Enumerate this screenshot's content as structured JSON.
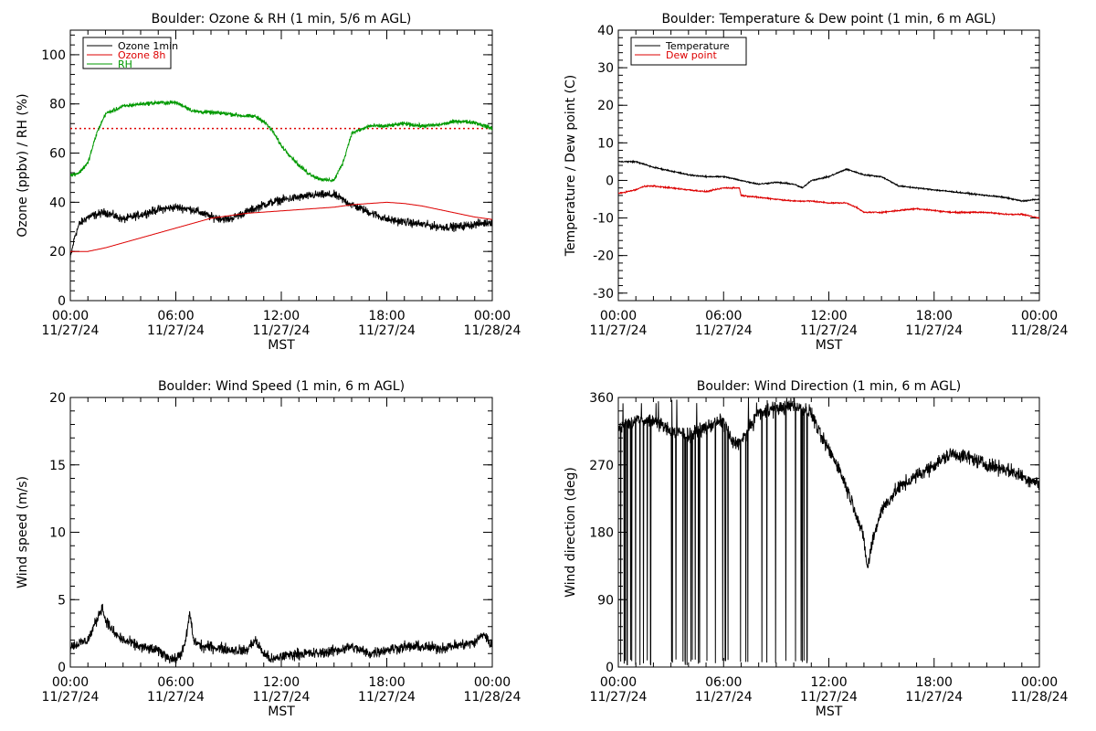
{
  "colors": {
    "black": "#000000",
    "red": "#dd0000",
    "green": "#009900"
  },
  "x_tick_labels": [
    {
      "time": "00:00",
      "date": "11/27/24"
    },
    {
      "time": "06:00",
      "date": "11/27/24"
    },
    {
      "time": "12:00",
      "date": "11/27/24"
    },
    {
      "time": "18:00",
      "date": "11/27/24"
    },
    {
      "time": "00:00",
      "date": "11/28/24"
    }
  ],
  "chart_data": [
    {
      "id": "ozone_rh",
      "type": "line",
      "title": "Boulder: Ozone & RH (1 min, 5/6 m AGL)",
      "xlabel": "MST",
      "ylabel": "Ozone (ppbv) / RH (%)",
      "xlim": [
        "2024-11-27 00:00",
        "2024-11-28 00:00"
      ],
      "ylim": [
        0,
        110
      ],
      "yticks": [
        0,
        20,
        40,
        60,
        80,
        100
      ],
      "legend_position": "top-left",
      "reference_line": {
        "y": 70,
        "color": "#dd0000",
        "style": "dotted"
      },
      "series": [
        {
          "name": "Ozone 1min",
          "color": "#000000",
          "noise": 2.5,
          "x_hours": [
            0,
            0.25,
            0.5,
            1,
            2,
            3,
            4,
            5,
            6,
            7,
            8,
            9,
            10,
            11,
            12,
            13,
            14,
            15,
            16,
            17,
            18,
            19,
            20,
            21,
            22,
            23,
            24
          ],
          "y": [
            17,
            26,
            31,
            34,
            36,
            33,
            35,
            37,
            38,
            37,
            34,
            33,
            36,
            39,
            41,
            42,
            43,
            43,
            39,
            36,
            33,
            32,
            31,
            30,
            30,
            31,
            32
          ]
        },
        {
          "name": "Ozone 8h",
          "color": "#dd0000",
          "noise": 0,
          "x_hours": [
            0,
            1,
            2,
            3,
            4,
            5,
            6,
            7,
            8,
            9,
            10,
            11,
            12,
            13,
            14,
            15,
            16,
            17,
            18,
            19,
            20,
            21,
            22,
            23,
            24
          ],
          "y": [
            20,
            20,
            21.5,
            23.5,
            25.5,
            27.5,
            29.5,
            31.5,
            33.5,
            34.5,
            35.5,
            36,
            36.5,
            37,
            37.5,
            38,
            39,
            39.5,
            40,
            39.5,
            38.5,
            37,
            35.5,
            34,
            33
          ]
        },
        {
          "name": "RH",
          "color": "#009900",
          "noise": 1.2,
          "x_hours": [
            0,
            0.5,
            1,
            1.5,
            2,
            3,
            4,
            5,
            6,
            6.5,
            7,
            8,
            9,
            10,
            10.5,
            11,
            11.5,
            12,
            12.5,
            13,
            13.5,
            14,
            14.5,
            15,
            15.5,
            16,
            17,
            18,
            19,
            20,
            21,
            22,
            23,
            24
          ],
          "y": [
            51,
            52,
            56,
            68,
            76,
            79,
            80,
            80.5,
            80.5,
            79,
            77,
            76.5,
            76,
            75,
            75,
            73,
            69,
            63,
            59,
            55,
            52,
            50,
            49,
            49,
            56,
            68,
            71,
            71,
            72,
            71,
            71.5,
            73,
            72.5,
            70
          ]
        }
      ]
    },
    {
      "id": "temp_dew",
      "type": "line",
      "title": "Boulder: Temperature & Dew point (1 min, 6 m AGL)",
      "xlabel": "MST",
      "ylabel": "Temperature / Dew point (C)",
      "xlim": [
        "2024-11-27 00:00",
        "2024-11-28 00:00"
      ],
      "ylim": [
        -32,
        40
      ],
      "yticks": [
        -30,
        -20,
        -10,
        0,
        10,
        20,
        30,
        40
      ],
      "legend_position": "top-left",
      "series": [
        {
          "name": "Temperature",
          "color": "#000000",
          "noise": 0.25,
          "x_hours": [
            0,
            1,
            2,
            3,
            4,
            5,
            6,
            7,
            8,
            9,
            10,
            10.5,
            11,
            12,
            13,
            14,
            15,
            16,
            17,
            18,
            19,
            20,
            21,
            22,
            23,
            24
          ],
          "y": [
            5,
            5,
            3.5,
            2.5,
            1.5,
            1,
            1,
            0,
            -1,
            -0.5,
            -1,
            -2,
            0,
            1,
            3,
            1.5,
            1,
            -1.5,
            -2,
            -2.5,
            -3,
            -3.5,
            -4,
            -4.5,
            -5.5,
            -5
          ]
        },
        {
          "name": "Dew point",
          "color": "#dd0000",
          "noise": 0.25,
          "x_hours": [
            0,
            1,
            1.5,
            2,
            3,
            4,
            5,
            6,
            6.5,
            6.9,
            7,
            8,
            9,
            10,
            11,
            12,
            13,
            13.5,
            14,
            15,
            16,
            17,
            18,
            19,
            20,
            21,
            22,
            23,
            24
          ],
          "y": [
            -3.5,
            -2.5,
            -1.5,
            -1.5,
            -2,
            -2.5,
            -3,
            -2,
            -2,
            -2,
            -4,
            -4.5,
            -5,
            -5.5,
            -5.5,
            -6,
            -6,
            -7,
            -8.5,
            -8.5,
            -8,
            -7.5,
            -8,
            -8.5,
            -8.5,
            -8.5,
            -9,
            -9,
            -10
          ]
        }
      ]
    },
    {
      "id": "wind_speed",
      "type": "line",
      "title": "Boulder: Wind Speed (1 min, 6 m AGL)",
      "xlabel": "MST",
      "ylabel": "Wind speed (m/s)",
      "xlim": [
        "2024-11-27 00:00",
        "2024-11-28 00:00"
      ],
      "ylim": [
        0,
        20
      ],
      "yticks": [
        0,
        5,
        10,
        15,
        20
      ],
      "series": [
        {
          "name": "",
          "color": "#000000",
          "noise": 0.6,
          "x_hours": [
            0,
            1,
            1.5,
            1.8,
            2,
            2.5,
            3,
            4,
            5,
            5.5,
            6,
            6.5,
            6.8,
            7,
            7.5,
            8,
            9,
            10,
            10.5,
            11,
            11.5,
            12,
            13,
            14,
            15,
            16,
            17,
            18,
            19,
            20,
            21,
            22,
            23,
            23.5,
            24
          ],
          "y": [
            1.5,
            2,
            3.5,
            4.5,
            3.5,
            2.5,
            2,
            1.5,
            1.2,
            0.8,
            0.5,
            1.5,
            4,
            2,
            1.5,
            1.5,
            1.3,
            1.2,
            2,
            1,
            0.5,
            0.8,
            1,
            1,
            1.2,
            1.5,
            1,
            1.3,
            1.5,
            1.5,
            1.4,
            1.6,
            1.8,
            2.5,
            1.5
          ]
        }
      ]
    },
    {
      "id": "wind_dir",
      "type": "line",
      "title": "Boulder: Wind Direction (1 min, 6 m AGL)",
      "xlabel": "MST",
      "ylabel": "Wind direction (deg)",
      "xlim": [
        "2024-11-27 00:00",
        "2024-11-28 00:00"
      ],
      "ylim": [
        0,
        360
      ],
      "yticks": [
        0,
        90,
        180,
        270,
        360
      ],
      "series": [
        {
          "name": "",
          "color": "#000000",
          "noise": 14,
          "wrap_until_hour": 11.2,
          "x_hours": [
            0,
            1,
            2,
            3,
            4,
            5,
            6,
            6.5,
            7,
            7.5,
            8,
            9,
            10,
            11,
            11.5,
            12,
            12.5,
            13,
            13.5,
            14,
            14.2,
            14.5,
            15,
            16,
            17,
            18,
            19,
            20,
            21,
            22,
            23,
            24
          ],
          "y": [
            320,
            330,
            330,
            315,
            310,
            320,
            330,
            300,
            300,
            320,
            340,
            345,
            350,
            340,
            310,
            290,
            270,
            240,
            210,
            170,
            130,
            170,
            210,
            240,
            255,
            270,
            285,
            280,
            270,
            265,
            255,
            245
          ]
        }
      ]
    }
  ]
}
